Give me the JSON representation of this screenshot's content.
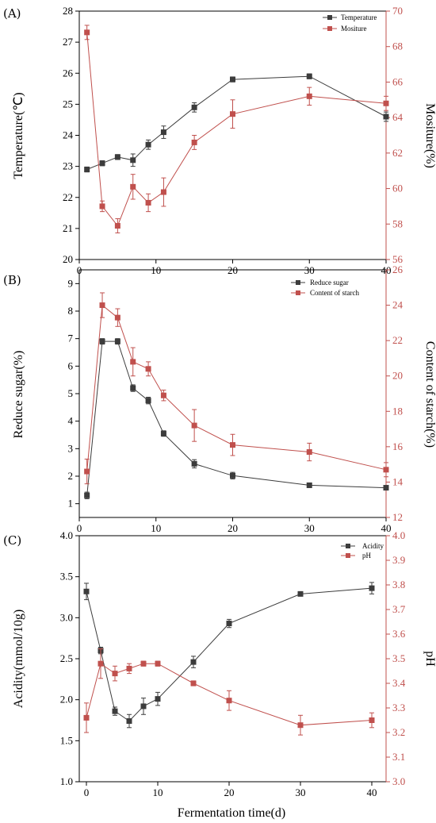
{
  "figure": {
    "colors": {
      "series1": "#3c3c3c",
      "series2": "#c0504d",
      "axis_black": "#000000",
      "axis_red": "#c0504d"
    }
  },
  "chart_data": [
    {
      "type": "line",
      "panel_label": "(A)",
      "xlabel": "",
      "x_ticks": [
        "0",
        "10",
        "20",
        "30",
        "40"
      ],
      "xlim": [
        0,
        40
      ],
      "ylabel_left": "Temperature(℃)",
      "ylabel_right": "Mositure(%)",
      "ylim_left": [
        20,
        28
      ],
      "ylim_right": [
        56,
        70
      ],
      "left_ticks": [
        "20",
        "21",
        "22",
        "23",
        "24",
        "25",
        "26",
        "27",
        "28"
      ],
      "right_ticks": [
        "56",
        "58",
        "60",
        "62",
        "64",
        "66",
        "68",
        "70"
      ],
      "legend_position": "top-right",
      "series": [
        {
          "name": "Temperature",
          "axis": "left",
          "x": [
            1,
            3,
            5,
            7,
            9,
            11,
            15,
            20,
            30,
            40
          ],
          "y": [
            22.9,
            23.1,
            23.3,
            23.2,
            23.7,
            24.1,
            24.9,
            25.8,
            25.9,
            24.6
          ],
          "err": [
            0.08,
            0.08,
            0.08,
            0.2,
            0.15,
            0.2,
            0.15,
            0.08,
            0.08,
            0.15
          ]
        },
        {
          "name": "Mositure",
          "axis": "right",
          "x": [
            1,
            3,
            5,
            7,
            9,
            11,
            15,
            20,
            30,
            40
          ],
          "y": [
            68.8,
            59.0,
            57.9,
            60.1,
            59.2,
            59.8,
            62.6,
            64.2,
            65.2,
            64.8
          ],
          "err": [
            0.4,
            0.3,
            0.4,
            0.7,
            0.5,
            0.8,
            0.4,
            0.8,
            0.5,
            0.4
          ]
        }
      ]
    },
    {
      "type": "line",
      "panel_label": "(B)",
      "xlabel": "",
      "x_ticks": [
        "0",
        "10",
        "20",
        "30",
        "40"
      ],
      "xlim": [
        0,
        40
      ],
      "ylabel_left": "Reduce sugar(%)",
      "ylabel_right": "Content of starch(%)",
      "ylim_left": [
        0.5,
        9.5
      ],
      "ylim_right": [
        12,
        26
      ],
      "left_ticks": [
        "1",
        "2",
        "3",
        "4",
        "5",
        "6",
        "7",
        "8",
        "9"
      ],
      "right_ticks": [
        "12",
        "14",
        "16",
        "18",
        "20",
        "22",
        "24",
        "26"
      ],
      "legend_position": "top-right",
      "series": [
        {
          "name": "Reduce sugar",
          "axis": "left",
          "x": [
            1,
            3,
            5,
            7,
            9,
            11,
            15,
            20,
            30,
            40
          ],
          "y": [
            1.3,
            6.9,
            6.9,
            5.2,
            4.75,
            3.55,
            2.45,
            2.02,
            1.67,
            1.58
          ],
          "err": [
            0.12,
            0.1,
            0.1,
            0.12,
            0.12,
            0.1,
            0.15,
            0.12,
            0.08,
            0.06
          ]
        },
        {
          "name": "Content of starch",
          "axis": "right",
          "x": [
            1,
            3,
            5,
            7,
            9,
            11,
            15,
            20,
            30,
            40
          ],
          "y": [
            14.6,
            24.0,
            23.3,
            20.8,
            20.4,
            18.9,
            17.2,
            16.1,
            15.7,
            14.7
          ],
          "err": [
            0.7,
            0.7,
            0.5,
            0.8,
            0.4,
            0.3,
            0.9,
            0.6,
            0.5,
            0.4
          ]
        }
      ]
    },
    {
      "type": "line",
      "panel_label": "(C)",
      "xlabel": "Fermentation time(d)",
      "x_ticks": [
        "0",
        "10",
        "20",
        "30",
        "40"
      ],
      "xlim": [
        -1,
        42
      ],
      "ylabel_left": "Acidity(mmol/10g)",
      "ylabel_right": "pH",
      "ylim_left": [
        1.0,
        4.0
      ],
      "ylim_right": [
        3.0,
        4.0
      ],
      "left_ticks": [
        "1.0",
        "1.5",
        "2.0",
        "2.5",
        "3.0",
        "3.5",
        "4.0"
      ],
      "right_ticks": [
        "3.0",
        "3.1",
        "3.2",
        "3.3",
        "3.4",
        "3.5",
        "3.6",
        "3.7",
        "3.8",
        "3.9",
        "4.0"
      ],
      "legend_position": "top-right",
      "series": [
        {
          "name": "Acidity",
          "axis": "left",
          "x": [
            0,
            2,
            4,
            6,
            8,
            10,
            15,
            20,
            30,
            40
          ],
          "y": [
            3.32,
            2.6,
            1.86,
            1.74,
            1.92,
            2.01,
            2.46,
            2.93,
            3.29,
            3.36
          ],
          "err": [
            0.1,
            0.04,
            0.05,
            0.08,
            0.1,
            0.08,
            0.07,
            0.05,
            0.02,
            0.07
          ]
        },
        {
          "name": "pH",
          "axis": "right",
          "x": [
            0,
            2,
            4,
            6,
            8,
            10,
            15,
            20,
            30,
            40
          ],
          "y": [
            3.26,
            3.48,
            3.44,
            3.46,
            3.48,
            3.48,
            3.4,
            3.33,
            3.23,
            3.25
          ],
          "err": [
            0.06,
            0.06,
            0.03,
            0.02,
            0.01,
            0.01,
            0.01,
            0.04,
            0.04,
            0.03
          ]
        }
      ]
    }
  ]
}
